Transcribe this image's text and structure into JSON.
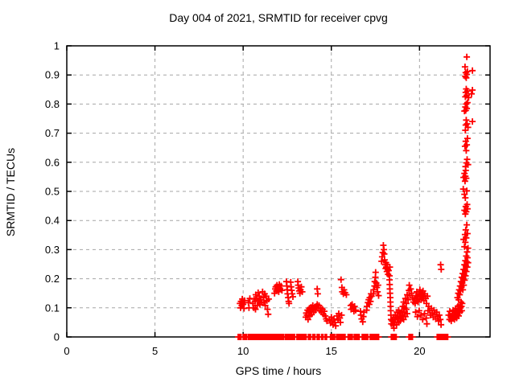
{
  "chart_data": {
    "type": "scatter",
    "title": "Day 004 of 2021, SRMTID for receiver cpvg",
    "xlabel": "GPS time / hours",
    "ylabel": "SRMTID / TECUs",
    "xlim": [
      0,
      24
    ],
    "ylim": [
      0,
      1
    ],
    "xticks": [
      0,
      5,
      10,
      15,
      20
    ],
    "xtick_labels": [
      "0",
      "5",
      "10",
      "15",
      "20"
    ],
    "yticks": [
      0,
      0.1,
      0.2,
      0.3,
      0.4,
      0.5,
      0.6,
      0.7,
      0.8,
      0.9,
      1
    ],
    "ytick_labels": [
      "0",
      "0.1",
      "0.2",
      "0.3",
      "0.4",
      "0.5",
      "0.6",
      "0.7",
      "0.8",
      "0.9",
      "1"
    ],
    "grid": true,
    "grid_style": "dashed",
    "grid_color": "#a6a6a6",
    "legend": "none",
    "marker": "plus",
    "marker_color": "#ff0000",
    "border_color": "#000000",
    "series_name": "SRMTID",
    "zero_band_segments": [
      [
        9.72,
        9.9
      ],
      [
        10.0,
        10.2
      ],
      [
        10.3,
        11.05
      ],
      [
        11.1,
        12.3
      ],
      [
        12.4,
        12.95
      ],
      [
        13.05,
        13.6
      ],
      [
        13.7,
        13.85
      ],
      [
        13.95,
        14.1
      ],
      [
        14.2,
        14.35
      ],
      [
        14.45,
        14.55
      ],
      [
        14.65,
        14.75
      ],
      [
        14.95,
        15.2
      ],
      [
        15.3,
        15.8
      ],
      [
        15.95,
        16.2
      ],
      [
        16.3,
        16.6
      ],
      [
        16.75,
        17.1
      ],
      [
        17.2,
        17.7
      ],
      [
        18.4,
        18.7
      ],
      [
        19.4,
        19.6
      ],
      [
        21.0,
        21.6
      ]
    ],
    "zero_band_step": 0.04,
    "points": [
      [
        9.82,
        0.115
      ],
      [
        9.85,
        0.1
      ],
      [
        9.88,
        0.122
      ],
      [
        9.92,
        0.108
      ],
      [
        9.95,
        0.13
      ],
      [
        10.0,
        0.112
      ],
      [
        10.05,
        0.098
      ],
      [
        10.08,
        0.125
      ],
      [
        10.3,
        0.118
      ],
      [
        10.33,
        0.1
      ],
      [
        10.38,
        0.132
      ],
      [
        10.55,
        0.115
      ],
      [
        10.6,
        0.1
      ],
      [
        10.62,
        0.13
      ],
      [
        10.68,
        0.122
      ],
      [
        10.7,
        0.095
      ],
      [
        10.72,
        0.145
      ],
      [
        10.78,
        0.132
      ],
      [
        10.8,
        0.108
      ],
      [
        10.85,
        0.152
      ],
      [
        10.88,
        0.125
      ],
      [
        10.92,
        0.14
      ],
      [
        10.95,
        0.112
      ],
      [
        11.0,
        0.128
      ],
      [
        11.05,
        0.118
      ],
      [
        11.1,
        0.155
      ],
      [
        11.15,
        0.135
      ],
      [
        11.18,
        0.12
      ],
      [
        11.22,
        0.148
      ],
      [
        11.25,
        0.108
      ],
      [
        11.3,
        0.14
      ],
      [
        11.35,
        0.125
      ],
      [
        11.38,
        0.095
      ],
      [
        11.42,
        0.078
      ],
      [
        11.45,
        0.13
      ],
      [
        11.78,
        0.15
      ],
      [
        11.82,
        0.165
      ],
      [
        11.85,
        0.172
      ],
      [
        11.88,
        0.158
      ],
      [
        11.92,
        0.178
      ],
      [
        11.95,
        0.162
      ],
      [
        12.0,
        0.17
      ],
      [
        12.02,
        0.155
      ],
      [
        12.05,
        0.18
      ],
      [
        12.1,
        0.165
      ],
      [
        12.15,
        0.175
      ],
      [
        12.2,
        0.16
      ],
      [
        12.45,
        0.19
      ],
      [
        12.48,
        0.175
      ],
      [
        12.5,
        0.162
      ],
      [
        12.52,
        0.148
      ],
      [
        12.55,
        0.135
      ],
      [
        12.58,
        0.122
      ],
      [
        12.6,
        0.115
      ],
      [
        12.7,
        0.188
      ],
      [
        12.72,
        0.172
      ],
      [
        12.75,
        0.16
      ],
      [
        12.78,
        0.148
      ],
      [
        12.82,
        0.138
      ],
      [
        13.1,
        0.19
      ],
      [
        13.12,
        0.178
      ],
      [
        13.15,
        0.168
      ],
      [
        13.18,
        0.158
      ],
      [
        13.22,
        0.15
      ],
      [
        13.25,
        0.162
      ],
      [
        13.3,
        0.172
      ],
      [
        13.35,
        0.155
      ],
      [
        13.55,
        0.068
      ],
      [
        13.58,
        0.082
      ],
      [
        13.62,
        0.075
      ],
      [
        13.65,
        0.092
      ],
      [
        13.68,
        0.06
      ],
      [
        13.72,
        0.085
      ],
      [
        13.75,
        0.098
      ],
      [
        13.78,
        0.072
      ],
      [
        13.82,
        0.088
      ],
      [
        13.85,
        0.102
      ],
      [
        13.88,
        0.078
      ],
      [
        13.92,
        0.095
      ],
      [
        13.95,
        0.108
      ],
      [
        14.0,
        0.085
      ],
      [
        14.05,
        0.1
      ],
      [
        14.1,
        0.092
      ],
      [
        14.15,
        0.105
      ],
      [
        14.2,
        0.112
      ],
      [
        14.25,
        0.098
      ],
      [
        14.3,
        0.108
      ],
      [
        14.35,
        0.09
      ],
      [
        14.4,
        0.1
      ],
      [
        14.45,
        0.085
      ],
      [
        14.5,
        0.095
      ],
      [
        14.55,
        0.078
      ],
      [
        14.6,
        0.088
      ],
      [
        14.65,
        0.072
      ],
      [
        14.7,
        0.062
      ],
      [
        14.75,
        0.055
      ],
      [
        14.2,
        0.165
      ],
      [
        14.23,
        0.148
      ],
      [
        14.9,
        0.06
      ],
      [
        14.95,
        0.048
      ],
      [
        15.0,
        0.068
      ],
      [
        15.05,
        0.055
      ],
      [
        15.1,
        0.042
      ],
      [
        15.15,
        0.062
      ],
      [
        15.2,
        0.05
      ],
      [
        15.25,
        0.038
      ],
      [
        15.32,
        0.072
      ],
      [
        15.38,
        0.058
      ],
      [
        15.42,
        0.08
      ],
      [
        15.48,
        0.065
      ],
      [
        15.52,
        0.05
      ],
      [
        15.58,
        0.075
      ],
      [
        15.55,
        0.197
      ],
      [
        15.6,
        0.17
      ],
      [
        15.62,
        0.155
      ],
      [
        15.68,
        0.148
      ],
      [
        15.72,
        0.162
      ],
      [
        15.78,
        0.152
      ],
      [
        15.85,
        0.145
      ],
      [
        16.1,
        0.108
      ],
      [
        16.12,
        0.095
      ],
      [
        16.18,
        0.112
      ],
      [
        16.22,
        0.1
      ],
      [
        16.28,
        0.088
      ],
      [
        16.32,
        0.105
      ],
      [
        16.38,
        0.092
      ],
      [
        16.65,
        0.088
      ],
      [
        16.68,
        0.075
      ],
      [
        16.72,
        0.062
      ],
      [
        16.78,
        0.052
      ],
      [
        16.82,
        0.07
      ],
      [
        16.85,
        0.085
      ],
      [
        17.0,
        0.092
      ],
      [
        17.02,
        0.105
      ],
      [
        17.08,
        0.118
      ],
      [
        17.12,
        0.128
      ],
      [
        17.15,
        0.112
      ],
      [
        17.18,
        0.135
      ],
      [
        17.22,
        0.122
      ],
      [
        17.25,
        0.148
      ],
      [
        17.28,
        0.14
      ],
      [
        17.38,
        0.148
      ],
      [
        17.4,
        0.162
      ],
      [
        17.45,
        0.175
      ],
      [
        17.46,
        0.19
      ],
      [
        17.5,
        0.205
      ],
      [
        17.51,
        0.222
      ],
      [
        17.55,
        0.185
      ],
      [
        17.58,
        0.17
      ],
      [
        17.62,
        0.155
      ],
      [
        17.65,
        0.178
      ],
      [
        17.68,
        0.142
      ],
      [
        17.85,
        0.26
      ],
      [
        17.88,
        0.275
      ],
      [
        17.92,
        0.29
      ],
      [
        17.95,
        0.315
      ],
      [
        17.98,
        0.3
      ],
      [
        18.0,
        0.285
      ],
      [
        18.02,
        0.265
      ],
      [
        18.05,
        0.248
      ],
      [
        18.08,
        0.235
      ],
      [
        18.1,
        0.255
      ],
      [
        18.12,
        0.24
      ],
      [
        18.15,
        0.225
      ],
      [
        18.18,
        0.248
      ],
      [
        18.2,
        0.232
      ],
      [
        18.22,
        0.215
      ],
      [
        18.25,
        0.228
      ],
      [
        18.3,
        0.21
      ],
      [
        18.32,
        0.24
      ],
      [
        18.3,
        0.196
      ],
      [
        18.31,
        0.18
      ],
      [
        18.32,
        0.165
      ],
      [
        18.33,
        0.15
      ],
      [
        18.34,
        0.135
      ],
      [
        18.35,
        0.12
      ],
      [
        18.36,
        0.105
      ],
      [
        18.37,
        0.09
      ],
      [
        18.38,
        0.075
      ],
      [
        18.39,
        0.06
      ],
      [
        18.4,
        0.045
      ],
      [
        18.45,
        0.055
      ],
      [
        18.5,
        0.04
      ],
      [
        18.52,
        0.068
      ],
      [
        18.55,
        0.03
      ],
      [
        18.6,
        0.05
      ],
      [
        18.62,
        0.075
      ],
      [
        18.65,
        0.06
      ],
      [
        18.7,
        0.042
      ],
      [
        18.72,
        0.085
      ],
      [
        18.75,
        0.065
      ],
      [
        18.8,
        0.05
      ],
      [
        18.82,
        0.092
      ],
      [
        18.85,
        0.07
      ],
      [
        18.9,
        0.055
      ],
      [
        18.92,
        0.08
      ],
      [
        18.95,
        0.065
      ],
      [
        19.0,
        0.09
      ],
      [
        19.05,
        0.075
      ],
      [
        19.1,
        0.06
      ],
      [
        19.15,
        0.085
      ],
      [
        19.2,
        0.07
      ],
      [
        19.25,
        0.095
      ],
      [
        19.3,
        0.08
      ],
      [
        19.05,
        0.105
      ],
      [
        19.1,
        0.12
      ],
      [
        19.15,
        0.1
      ],
      [
        19.2,
        0.132
      ],
      [
        19.25,
        0.115
      ],
      [
        19.3,
        0.145
      ],
      [
        19.35,
        0.128
      ],
      [
        19.4,
        0.16
      ],
      [
        19.42,
        0.178
      ],
      [
        19.45,
        0.142
      ],
      [
        19.5,
        0.165
      ],
      [
        19.55,
        0.15
      ],
      [
        19.6,
        0.135
      ],
      [
        19.65,
        0.12
      ],
      [
        19.72,
        0.13
      ],
      [
        19.75,
        0.115
      ],
      [
        19.8,
        0.142
      ],
      [
        19.82,
        0.125
      ],
      [
        19.85,
        0.155
      ],
      [
        19.9,
        0.138
      ],
      [
        19.92,
        0.12
      ],
      [
        19.95,
        0.148
      ],
      [
        20.0,
        0.132
      ],
      [
        20.02,
        0.162
      ],
      [
        20.05,
        0.145
      ],
      [
        20.1,
        0.128
      ],
      [
        20.12,
        0.152
      ],
      [
        20.15,
        0.138
      ],
      [
        20.2,
        0.158
      ],
      [
        20.22,
        0.142
      ],
      [
        20.25,
        0.125
      ],
      [
        20.3,
        0.148
      ],
      [
        20.35,
        0.132
      ],
      [
        20.4,
        0.115
      ],
      [
        20.45,
        0.14
      ],
      [
        19.78,
        0.085
      ],
      [
        19.88,
        0.07
      ],
      [
        19.98,
        0.09
      ],
      [
        20.08,
        0.075
      ],
      [
        20.18,
        0.06
      ],
      [
        20.28,
        0.08
      ],
      [
        20.38,
        0.065
      ],
      [
        20.42,
        0.045
      ],
      [
        20.48,
        0.09
      ],
      [
        20.52,
        0.105
      ],
      [
        20.58,
        0.09
      ],
      [
        20.62,
        0.075
      ],
      [
        20.68,
        0.098
      ],
      [
        20.72,
        0.082
      ],
      [
        20.78,
        0.068
      ],
      [
        20.82,
        0.092
      ],
      [
        20.88,
        0.078
      ],
      [
        20.92,
        0.062
      ],
      [
        20.98,
        0.085
      ],
      [
        21.02,
        0.07
      ],
      [
        21.08,
        0.055
      ],
      [
        21.12,
        0.075
      ],
      [
        21.18,
        0.06
      ],
      [
        21.22,
        0.042
      ],
      [
        21.2,
        0.248
      ],
      [
        21.23,
        0.232
      ],
      [
        21.65,
        0.075
      ],
      [
        21.7,
        0.06
      ],
      [
        21.72,
        0.088
      ],
      [
        21.78,
        0.07
      ],
      [
        21.8,
        0.055
      ],
      [
        21.85,
        0.08
      ],
      [
        21.88,
        0.065
      ],
      [
        21.9,
        0.092
      ],
      [
        21.95,
        0.075
      ],
      [
        21.98,
        0.06
      ],
      [
        22.0,
        0.085
      ],
      [
        22.02,
        0.07
      ],
      [
        22.05,
        0.098
      ],
      [
        22.08,
        0.082
      ],
      [
        22.1,
        0.065
      ],
      [
        22.12,
        0.09
      ],
      [
        22.15,
        0.075
      ],
      [
        22.18,
        0.105
      ],
      [
        22.2,
        0.088
      ],
      [
        22.22,
        0.072
      ],
      [
        22.25,
        0.095
      ],
      [
        22.28,
        0.11
      ],
      [
        22.3,
        0.085
      ],
      [
        22.32,
        0.1
      ],
      [
        22.35,
        0.12
      ],
      [
        22.38,
        0.105
      ],
      [
        22.4,
        0.09
      ],
      [
        22.42,
        0.115
      ],
      [
        22.15,
        0.135
      ],
      [
        22.2,
        0.15
      ],
      [
        22.22,
        0.128
      ],
      [
        22.25,
        0.162
      ],
      [
        22.28,
        0.145
      ],
      [
        22.3,
        0.175
      ],
      [
        22.32,
        0.158
      ],
      [
        22.35,
        0.19
      ],
      [
        22.38,
        0.172
      ],
      [
        22.4,
        0.205
      ],
      [
        22.42,
        0.185
      ],
      [
        22.45,
        0.218
      ],
      [
        22.46,
        0.162
      ],
      [
        22.48,
        0.2
      ],
      [
        22.5,
        0.232
      ],
      [
        22.51,
        0.178
      ],
      [
        22.52,
        0.215
      ],
      [
        22.55,
        0.248
      ],
      [
        22.56,
        0.195
      ],
      [
        22.58,
        0.228
      ],
      [
        22.6,
        0.262
      ],
      [
        22.61,
        0.21
      ],
      [
        22.62,
        0.245
      ],
      [
        22.65,
        0.278
      ],
      [
        22.66,
        0.225
      ],
      [
        22.68,
        0.258
      ],
      [
        22.7,
        0.292
      ],
      [
        22.71,
        0.24
      ],
      [
        22.72,
        0.272
      ],
      [
        22.75,
        0.255
      ],
      [
        22.5,
        0.335
      ],
      [
        22.55,
        0.31
      ],
      [
        22.58,
        0.352
      ],
      [
        22.6,
        0.325
      ],
      [
        22.62,
        0.368
      ],
      [
        22.65,
        0.34
      ],
      [
        22.68,
        0.385
      ],
      [
        22.72,
        0.355
      ],
      [
        22.75,
        0.305
      ],
      [
        22.55,
        0.435
      ],
      [
        22.6,
        0.422
      ],
      [
        22.62,
        0.448
      ],
      [
        22.65,
        0.43
      ],
      [
        22.7,
        0.455
      ],
      [
        22.72,
        0.44
      ],
      [
        22.48,
        0.508
      ],
      [
        22.55,
        0.49
      ],
      [
        22.6,
        0.478
      ],
      [
        22.68,
        0.502
      ],
      [
        22.5,
        0.548
      ],
      [
        22.55,
        0.562
      ],
      [
        22.58,
        0.535
      ],
      [
        22.6,
        0.552
      ],
      [
        22.62,
        0.572
      ],
      [
        22.65,
        0.545
      ],
      [
        22.61,
        0.585
      ],
      [
        22.66,
        0.598
      ],
      [
        22.7,
        0.61
      ],
      [
        22.75,
        0.592
      ],
      [
        22.58,
        0.655
      ],
      [
        22.62,
        0.672
      ],
      [
        22.65,
        0.64
      ],
      [
        22.68,
        0.66
      ],
      [
        22.72,
        0.682
      ],
      [
        22.6,
        0.71
      ],
      [
        22.62,
        0.728
      ],
      [
        22.65,
        0.745
      ],
      [
        22.7,
        0.732
      ],
      [
        22.75,
        0.72
      ],
      [
        23.0,
        0.74
      ],
      [
        22.55,
        0.776
      ],
      [
        22.6,
        0.79
      ],
      [
        22.62,
        0.778
      ],
      [
        22.65,
        0.8
      ],
      [
        22.68,
        0.785
      ],
      [
        22.72,
        0.805
      ],
      [
        22.6,
        0.825
      ],
      [
        22.62,
        0.84
      ],
      [
        22.65,
        0.852
      ],
      [
        22.68,
        0.83
      ],
      [
        22.72,
        0.845
      ],
      [
        22.78,
        0.822
      ],
      [
        22.95,
        0.835
      ],
      [
        23.0,
        0.848
      ],
      [
        22.58,
        0.928
      ],
      [
        22.6,
        0.895
      ],
      [
        22.62,
        0.908
      ],
      [
        22.65,
        0.89
      ],
      [
        22.68,
        0.902
      ],
      [
        22.72,
        0.912
      ],
      [
        23.0,
        0.915
      ],
      [
        22.68,
        0.962
      ]
    ]
  }
}
